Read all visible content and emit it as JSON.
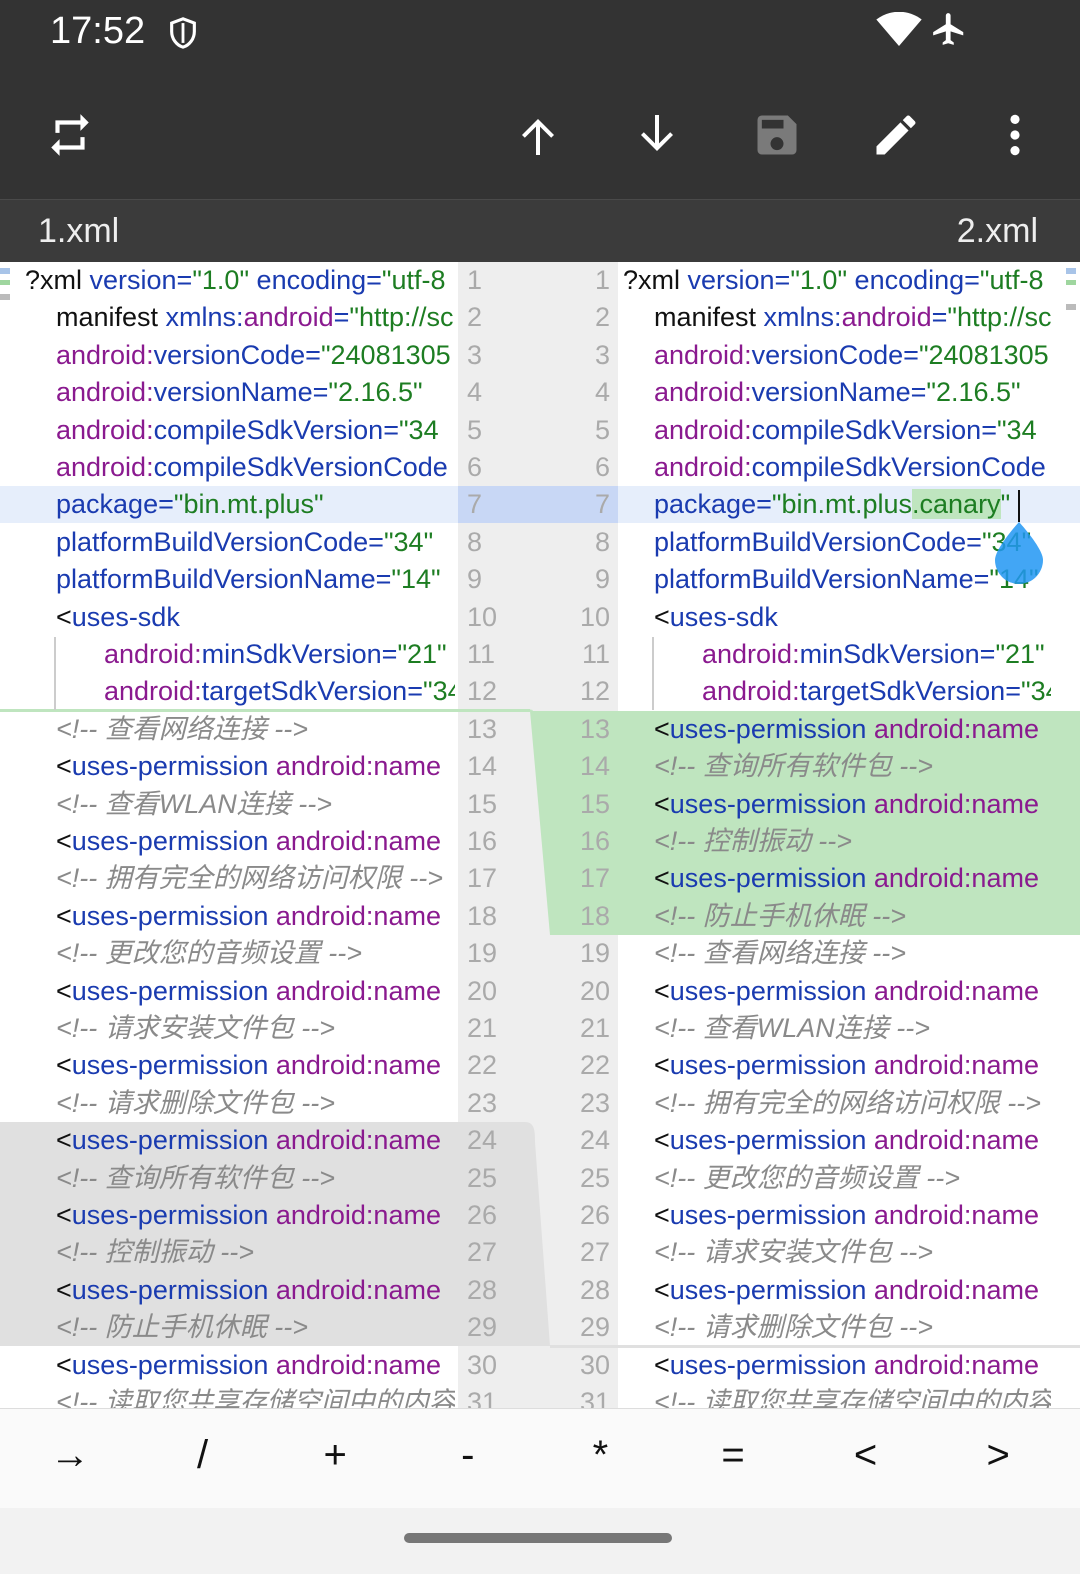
{
  "status": {
    "time": "17:52",
    "icons": [
      "shield-icon",
      "wifi-icon",
      "airplane-icon"
    ]
  },
  "toolbar": {
    "icons": [
      "swap-icon",
      "arrow-up-icon",
      "arrow-down-icon",
      "save-icon",
      "edit-icon",
      "more-icon"
    ],
    "save_enabled": false
  },
  "tabs": {
    "left": "1.xml",
    "right": "2.xml"
  },
  "colors": {
    "tag": "#1a3bb0",
    "attr": "#8a1a8f",
    "value": "#1d7d22",
    "comment": "#8a8a8a",
    "added": "#bfe5bf",
    "removed": "#e0e0e0",
    "current_line": "#e6eefb"
  },
  "left": [
    [
      [
        "p",
        "?xml  "
      ],
      [
        "t",
        "version="
      ],
      [
        "v",
        "\"1.0\"  "
      ],
      [
        "t",
        "encoding="
      ],
      [
        "v",
        "\"utf-8"
      ]
    ],
    [
      [
        "p",
        "manifest  "
      ],
      [
        "t",
        "xmlns:"
      ],
      [
        "a",
        "android"
      ],
      [
        "t",
        "="
      ],
      [
        "v",
        "\"http://sc"
      ]
    ],
    [
      [
        "a",
        "android:"
      ],
      [
        "t",
        "versionCode="
      ],
      [
        "v",
        "\"24081305"
      ]
    ],
    [
      [
        "a",
        "android:"
      ],
      [
        "t",
        "versionName="
      ],
      [
        "v",
        "\"2.16.5\""
      ]
    ],
    [
      [
        "a",
        "android:"
      ],
      [
        "t",
        "compileSdkVersion="
      ],
      [
        "v",
        "\"34"
      ]
    ],
    [
      [
        "a",
        "android:"
      ],
      [
        "t",
        "compileSdkVersionCode"
      ]
    ],
    [
      [
        "t",
        "package="
      ],
      [
        "v",
        "\"bin.mt.plus\""
      ]
    ],
    [
      [
        "t",
        "platformBuildVersionCode="
      ],
      [
        "v",
        "\"34\""
      ]
    ],
    [
      [
        "t",
        "platformBuildVersionName="
      ],
      [
        "v",
        "\"14\""
      ]
    ],
    [
      [
        "p",
        "<"
      ],
      [
        "t",
        "uses-sdk"
      ]
    ],
    [
      [
        "a",
        "android:"
      ],
      [
        "t",
        "minSdkVersion="
      ],
      [
        "v",
        "\"21\""
      ]
    ],
    [
      [
        "a",
        "android:"
      ],
      [
        "t",
        "targetSdkVersion="
      ],
      [
        "v",
        "\"34"
      ]
    ],
    [
      [
        "c",
        "<!--  查看网络连接  -->"
      ]
    ],
    [
      [
        "p",
        "<"
      ],
      [
        "t",
        "uses-permission  "
      ],
      [
        "a",
        "android:name"
      ]
    ],
    [
      [
        "c",
        "<!--  查看WLAN连接  -->"
      ]
    ],
    [
      [
        "p",
        "<"
      ],
      [
        "t",
        "uses-permission  "
      ],
      [
        "a",
        "android:name"
      ]
    ],
    [
      [
        "c",
        "<!--  拥有完全的网络访问权限  -->"
      ]
    ],
    [
      [
        "p",
        "<"
      ],
      [
        "t",
        "uses-permission  "
      ],
      [
        "a",
        "android:name"
      ]
    ],
    [
      [
        "c",
        "<!--  更改您的音频设置  -->"
      ]
    ],
    [
      [
        "p",
        "<"
      ],
      [
        "t",
        "uses-permission  "
      ],
      [
        "a",
        "android:name"
      ]
    ],
    [
      [
        "c",
        "<!--  请求安装文件包  -->"
      ]
    ],
    [
      [
        "p",
        "<"
      ],
      [
        "t",
        "uses-permission  "
      ],
      [
        "a",
        "android:name"
      ]
    ],
    [
      [
        "c",
        "<!--  请求删除文件包  -->"
      ]
    ],
    [
      [
        "p",
        "<"
      ],
      [
        "t",
        "uses-permission  "
      ],
      [
        "a",
        "android:name"
      ]
    ],
    [
      [
        "c",
        "<!--  查询所有软件包  -->"
      ]
    ],
    [
      [
        "p",
        "<"
      ],
      [
        "t",
        "uses-permission  "
      ],
      [
        "a",
        "android:name"
      ]
    ],
    [
      [
        "c",
        "<!--  控制振动  -->"
      ]
    ],
    [
      [
        "p",
        "<"
      ],
      [
        "t",
        "uses-permission  "
      ],
      [
        "a",
        "android:name"
      ]
    ],
    [
      [
        "c",
        "<!--  防止手机休眠  -->"
      ]
    ],
    [
      [
        "p",
        "<"
      ],
      [
        "t",
        "uses-permission  "
      ],
      [
        "a",
        "android:name"
      ]
    ],
    [
      [
        "c",
        "<!--  读取您共享存储空间中的内容"
      ]
    ]
  ],
  "right": [
    [
      [
        "p",
        "?xml  "
      ],
      [
        "t",
        "version="
      ],
      [
        "v",
        "\"1.0\"  "
      ],
      [
        "t",
        "encoding="
      ],
      [
        "v",
        "\"utf-8"
      ]
    ],
    [
      [
        "p",
        "manifest  "
      ],
      [
        "t",
        "xmlns:"
      ],
      [
        "a",
        "android"
      ],
      [
        "t",
        "="
      ],
      [
        "v",
        "\"http://sc"
      ]
    ],
    [
      [
        "a",
        "android:"
      ],
      [
        "t",
        "versionCode="
      ],
      [
        "v",
        "\"24081305"
      ]
    ],
    [
      [
        "a",
        "android:"
      ],
      [
        "t",
        "versionName="
      ],
      [
        "v",
        "\"2.16.5\""
      ]
    ],
    [
      [
        "a",
        "android:"
      ],
      [
        "t",
        "compileSdkVersion="
      ],
      [
        "v",
        "\"34"
      ]
    ],
    [
      [
        "a",
        "android:"
      ],
      [
        "t",
        "compileSdkVersionCode"
      ]
    ],
    [
      [
        "t",
        "package="
      ],
      [
        "v",
        "\"bin.mt.plus"
      ],
      [
        "vh",
        ".canary"
      ],
      [
        "v",
        "\""
      ]
    ],
    [
      [
        "t",
        "platformBuildVersionCode="
      ],
      [
        "v",
        "\"34\""
      ]
    ],
    [
      [
        "t",
        "platformBuildVersionName="
      ],
      [
        "v",
        "\"14\""
      ]
    ],
    [
      [
        "p",
        "<"
      ],
      [
        "t",
        "uses-sdk"
      ]
    ],
    [
      [
        "a",
        "android:"
      ],
      [
        "t",
        "minSdkVersion="
      ],
      [
        "v",
        "\"21\""
      ]
    ],
    [
      [
        "a",
        "android:"
      ],
      [
        "t",
        "targetSdkVersion="
      ],
      [
        "v",
        "\"34"
      ]
    ],
    [
      [
        "p",
        "<"
      ],
      [
        "t",
        "uses-permission  "
      ],
      [
        "a",
        "android:name"
      ]
    ],
    [
      [
        "c",
        "<!--  查询所有软件包  -->"
      ]
    ],
    [
      [
        "p",
        "<"
      ],
      [
        "t",
        "uses-permission  "
      ],
      [
        "a",
        "android:name"
      ]
    ],
    [
      [
        "c",
        "<!--  控制振动  -->"
      ]
    ],
    [
      [
        "p",
        "<"
      ],
      [
        "t",
        "uses-permission  "
      ],
      [
        "a",
        "android:name"
      ]
    ],
    [
      [
        "c",
        "<!--  防止手机休眠  -->"
      ]
    ],
    [
      [
        "c",
        "<!--  查看网络连接  -->"
      ]
    ],
    [
      [
        "p",
        "<"
      ],
      [
        "t",
        "uses-permission  "
      ],
      [
        "a",
        "android:name"
      ]
    ],
    [
      [
        "c",
        "<!--  查看WLAN连接  -->"
      ]
    ],
    [
      [
        "p",
        "<"
      ],
      [
        "t",
        "uses-permission  "
      ],
      [
        "a",
        "android:name"
      ]
    ],
    [
      [
        "c",
        "<!--  拥有完全的网络访问权限  -->"
      ]
    ],
    [
      [
        "p",
        "<"
      ],
      [
        "t",
        "uses-permission  "
      ],
      [
        "a",
        "android:name"
      ]
    ],
    [
      [
        "c",
        "<!--  更改您的音频设置  -->"
      ]
    ],
    [
      [
        "p",
        "<"
      ],
      [
        "t",
        "uses-permission  "
      ],
      [
        "a",
        "android:name"
      ]
    ],
    [
      [
        "c",
        "<!--  请求安装文件包  -->"
      ]
    ],
    [
      [
        "p",
        "<"
      ],
      [
        "t",
        "uses-permission  "
      ],
      [
        "a",
        "android:name"
      ]
    ],
    [
      [
        "c",
        "<!--  请求删除文件包  -->"
      ]
    ],
    [
      [
        "p",
        "<"
      ],
      [
        "t",
        "uses-permission  "
      ],
      [
        "a",
        "android:name"
      ]
    ],
    [
      [
        "c",
        "<!--  读取您共享存储空间中的内容"
      ]
    ]
  ],
  "keys": [
    "→",
    "/",
    "+",
    "-",
    "*",
    "=",
    "<",
    ">"
  ]
}
